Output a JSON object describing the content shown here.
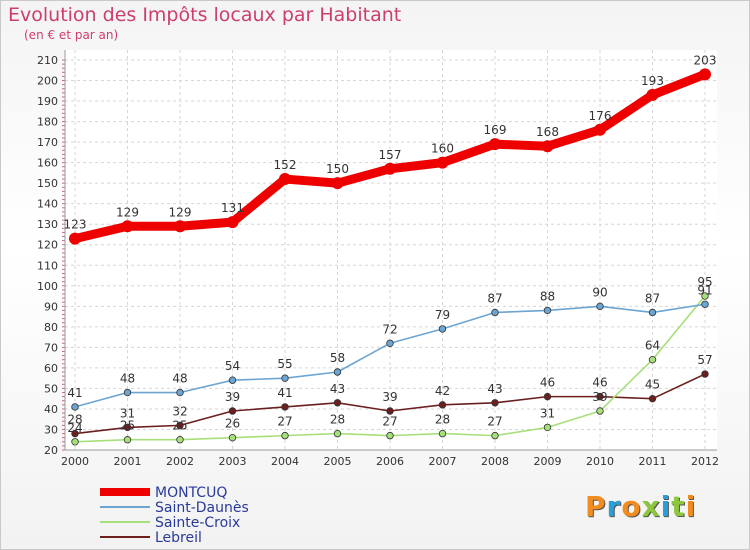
{
  "chart_data": {
    "type": "line",
    "title": "Evolution des Impôts locaux par Habitant",
    "subtitle": "(en € et par an)",
    "x": [
      "2000",
      "2001",
      "2002",
      "2003",
      "2004",
      "2005",
      "2006",
      "2007",
      "2008",
      "2009",
      "2010",
      "2011",
      "2012"
    ],
    "yticks": [
      20,
      30,
      40,
      50,
      60,
      70,
      80,
      90,
      100,
      110,
      120,
      130,
      140,
      150,
      160,
      170,
      180,
      190,
      200,
      210
    ],
    "ylim": [
      20,
      210
    ],
    "series": [
      {
        "name": "MONTCUQ",
        "color": "#ee0000",
        "values": [
          123,
          129,
          129,
          131,
          152,
          150,
          157,
          160,
          169,
          168,
          176,
          193,
          203
        ]
      },
      {
        "name": "Saint-Daunès",
        "color": "#6ca4d2",
        "values": [
          41,
          48,
          48,
          54,
          55,
          58,
          72,
          79,
          87,
          88,
          90,
          87,
          91
        ]
      },
      {
        "name": "Sainte-Croix",
        "color": "#a6e07a",
        "values": [
          24,
          25,
          25,
          26,
          27,
          28,
          27,
          28,
          27,
          31,
          39,
          64,
          95
        ]
      },
      {
        "name": "Lebreil",
        "color": "#6b1f1f",
        "values": [
          28,
          31,
          32,
          39,
          41,
          43,
          39,
          42,
          43,
          46,
          46,
          45,
          57
        ]
      }
    ],
    "data_labels": [
      {
        "series": 1,
        "values": [
          "41",
          "48",
          "48",
          "54",
          "55",
          "58",
          "72",
          "79",
          "87",
          "88",
          "90",
          "87",
          "91"
        ]
      },
      {
        "series": 2,
        "values": [
          "24",
          "25",
          "25",
          "26",
          "27",
          "28",
          "27",
          "28",
          "27",
          "31",
          "39",
          "64",
          "95"
        ]
      },
      {
        "series": 3,
        "values": [
          "28",
          "31",
          "32",
          "39",
          "41",
          "43",
          "39",
          "42",
          "43",
          "46",
          "46",
          "45",
          "57"
        ]
      },
      {
        "series": 0,
        "values": [
          "123",
          "129",
          "129",
          "131",
          "152",
          "150",
          "157",
          "160",
          "169",
          "168",
          "176",
          "193",
          "203"
        ]
      }
    ]
  },
  "logo": {
    "text": "Proxiti",
    "colors": [
      "#f28c1e",
      "#2a9fd8",
      "#f28c1e",
      "#8dc63f",
      "#2a9fd8",
      "#8dc63f",
      "#f28c1e"
    ]
  }
}
